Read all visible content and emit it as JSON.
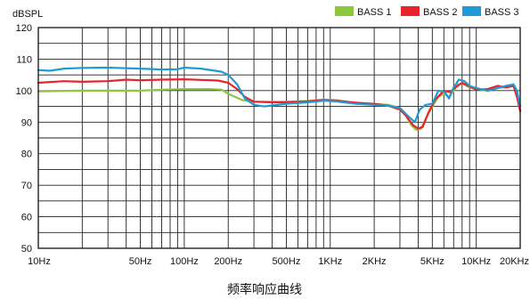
{
  "chart_data": {
    "type": "line",
    "title": "频率响应曲线",
    "ylabel": "dBSPL",
    "xscale": "log",
    "xlim": [
      10,
      20000
    ],
    "ylim": [
      50,
      120
    ],
    "grid": true,
    "legend_position": "top-right",
    "x_ticks": [
      {
        "value": 10,
        "label": "10Hz"
      },
      {
        "value": 50,
        "label": "50Hz"
      },
      {
        "value": 100,
        "label": "100Hz"
      },
      {
        "value": 200,
        "label": "200Hz"
      },
      {
        "value": 500,
        "label": "500Hz"
      },
      {
        "value": 1000,
        "label": "1KHz"
      },
      {
        "value": 2000,
        "label": "2KHz"
      },
      {
        "value": 5000,
        "label": "5KHz"
      },
      {
        "value": 10000,
        "label": "10KHz"
      },
      {
        "value": 20000,
        "label": "20KHz"
      }
    ],
    "y_ticks": [
      50,
      60,
      70,
      80,
      90,
      100,
      110,
      120
    ],
    "series": [
      {
        "name": "BASS 1",
        "color": "#8dc63f",
        "points": [
          [
            10,
            99.8
          ],
          [
            20,
            100
          ],
          [
            50,
            100
          ],
          [
            70,
            100.3
          ],
          [
            100,
            100.5
          ],
          [
            150,
            100.5
          ],
          [
            180,
            100.3
          ],
          [
            200,
            99
          ],
          [
            250,
            97
          ],
          [
            300,
            96.5
          ],
          [
            400,
            96.5
          ],
          [
            500,
            96.5
          ],
          [
            700,
            96.7
          ],
          [
            900,
            97.2
          ],
          [
            1100,
            97
          ],
          [
            1500,
            96
          ],
          [
            2000,
            95.8
          ],
          [
            2500,
            95.5
          ],
          [
            3000,
            94.5
          ],
          [
            3300,
            92
          ],
          [
            3600,
            89
          ],
          [
            3900,
            87.5
          ],
          [
            4200,
            88
          ],
          [
            4500,
            91
          ],
          [
            5000,
            95
          ],
          [
            5500,
            98
          ],
          [
            6000,
            99
          ],
          [
            6500,
            98
          ],
          [
            7000,
            100
          ],
          [
            7500,
            102
          ],
          [
            8000,
            102.3
          ],
          [
            9000,
            101
          ],
          [
            10000,
            100.5
          ],
          [
            12000,
            100
          ],
          [
            14000,
            101
          ],
          [
            16000,
            101
          ],
          [
            18000,
            102
          ],
          [
            19000,
            100
          ],
          [
            20000,
            93.5
          ]
        ]
      },
      {
        "name": "BASS 2",
        "color": "#e8232c",
        "points": [
          [
            10,
            102.5
          ],
          [
            15,
            103
          ],
          [
            20,
            102.8
          ],
          [
            30,
            103
          ],
          [
            40,
            103.5
          ],
          [
            50,
            103.3
          ],
          [
            70,
            103.5
          ],
          [
            100,
            103.6
          ],
          [
            130,
            103.4
          ],
          [
            170,
            103.2
          ],
          [
            200,
            102.5
          ],
          [
            230,
            100.5
          ],
          [
            260,
            98
          ],
          [
            300,
            96.5
          ],
          [
            400,
            96.3
          ],
          [
            500,
            96.3
          ],
          [
            700,
            96.6
          ],
          [
            900,
            97
          ],
          [
            1100,
            96.8
          ],
          [
            1500,
            96.2
          ],
          [
            2000,
            95.8
          ],
          [
            2500,
            95.2
          ],
          [
            3000,
            94
          ],
          [
            3300,
            92
          ],
          [
            3700,
            89
          ],
          [
            4000,
            88
          ],
          [
            4300,
            88.5
          ],
          [
            4700,
            93
          ],
          [
            5200,
            97
          ],
          [
            6000,
            100
          ],
          [
            6600,
            99.5
          ],
          [
            7200,
            101
          ],
          [
            8000,
            102.5
          ],
          [
            9000,
            101.3
          ],
          [
            10000,
            100.3
          ],
          [
            12000,
            100.5
          ],
          [
            14000,
            101.5
          ],
          [
            16000,
            101
          ],
          [
            18000,
            101.5
          ],
          [
            19000,
            98
          ],
          [
            20000,
            93.5
          ]
        ]
      },
      {
        "name": "BASS 3",
        "color": "#1f9ad6",
        "points": [
          [
            10,
            106.5
          ],
          [
            12,
            106.3
          ],
          [
            15,
            107
          ],
          [
            20,
            107.2
          ],
          [
            30,
            107.3
          ],
          [
            50,
            107
          ],
          [
            70,
            106.7
          ],
          [
            90,
            106.8
          ],
          [
            100,
            107.3
          ],
          [
            130,
            107
          ],
          [
            180,
            106
          ],
          [
            200,
            105
          ],
          [
            230,
            102
          ],
          [
            260,
            97.5
          ],
          [
            300,
            95.5
          ],
          [
            350,
            95
          ],
          [
            400,
            95.3
          ],
          [
            500,
            95.8
          ],
          [
            700,
            96.3
          ],
          [
            900,
            96.8
          ],
          [
            1100,
            96.6
          ],
          [
            1500,
            95.8
          ],
          [
            2000,
            95.5
          ],
          [
            2500,
            95.2
          ],
          [
            3000,
            94.5
          ],
          [
            3400,
            92
          ],
          [
            3800,
            90
          ],
          [
            4100,
            94
          ],
          [
            4500,
            95.5
          ],
          [
            5000,
            95.8
          ],
          [
            5500,
            100
          ],
          [
            6100,
            99.5
          ],
          [
            6500,
            97.5
          ],
          [
            7000,
            101
          ],
          [
            7600,
            103.5
          ],
          [
            8300,
            103
          ],
          [
            9000,
            101.5
          ],
          [
            10000,
            100.8
          ],
          [
            12000,
            100
          ],
          [
            14000,
            100.8
          ],
          [
            16000,
            101.5
          ],
          [
            18000,
            102
          ],
          [
            19000,
            100
          ],
          [
            20000,
            95
          ]
        ]
      }
    ]
  }
}
